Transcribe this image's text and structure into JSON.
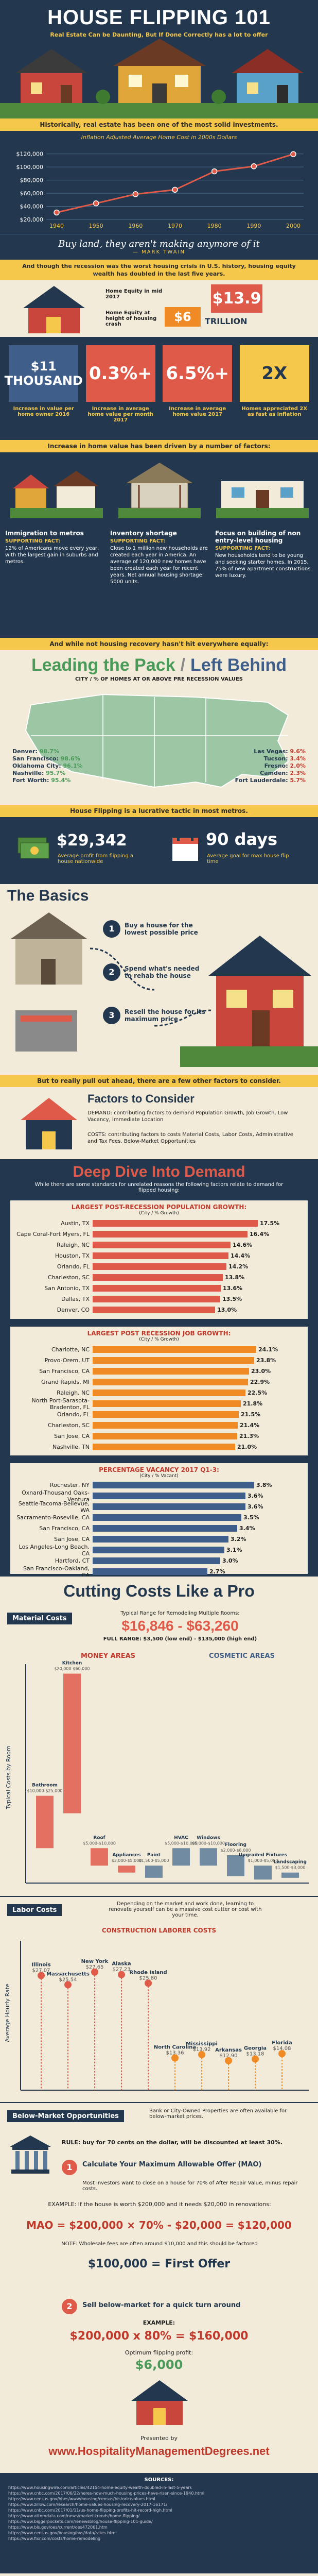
{
  "header": {
    "title": "HOUSE FLIPPING 101",
    "subtitle": "Real Estate Can be Daunting, But If Done Correctly has a lot to offer"
  },
  "intro_band": "Historically, real estate has been one of the most solid investments.",
  "home_cost_chart": {
    "title": "Inflation Adjusted Average Home Cost in 2000s Dollars",
    "x": [
      1940,
      1950,
      1960,
      1970,
      1980,
      1990,
      2000
    ],
    "values": [
      30600,
      44600,
      58600,
      65300,
      93400,
      101100,
      119600
    ],
    "y_ticks": [
      "$120,000",
      "$100,000",
      "$80,000",
      "$60,000",
      "$40,000",
      "$20,000"
    ],
    "x_labels": [
      "1940",
      "1950",
      "1960",
      "1970",
      "1980",
      "1990",
      "2000"
    ],
    "ylim": [
      20000,
      130000
    ]
  },
  "quote": {
    "text": "Buy land, they aren't making anymore of it",
    "author": "— MARK TWAIN"
  },
  "recession_band": "And though the recession was the worst housing crisis in U.S. history, housing equity wealth has doubled in the last five years.",
  "equity": {
    "left_label": "Home Equity in mid 2017",
    "left_value": "$13.9",
    "right_label": "Home Equity at height of housing crash",
    "right_value": "$6",
    "unit": "TRILLION"
  },
  "increase_stats": [
    {
      "value": "$11 THOUSAND",
      "label": "Increase in value per home owner 2016"
    },
    {
      "value": "0.3%+",
      "label": "Increase in average home value per month 2017"
    },
    {
      "value": "6.5%+",
      "label": "Increase in average home value 2017"
    },
    {
      "value": "2X",
      "label": "Homes appreciated 2X as fast as inflation"
    }
  ],
  "factors_band": "Increase in home value has been driven by a number of factors:",
  "factors": [
    {
      "title": "Immigration to metros",
      "sub": "SUPPORTING FACT:",
      "text": "12% of Americans move every year, with the largest gain in suburbs and metros."
    },
    {
      "title": "Inventory shortage",
      "sub": "SUPPORTING FACT:",
      "text": "Close to 1 million new households are created each year in America. An average of 120,000 new homes have been created each year for recent years. Net annual housing shortage: 5000 units."
    },
    {
      "title": "Focus on building of non entry-level housing",
      "sub": "SUPPORTING FACT:",
      "text": "New households tend to be young and seeking starter homes. In 2015, 75% of new apartment constructions were luxury."
    }
  ],
  "not_even_band": "And while not housing recovery hasn't hit everywhere equally:",
  "leading_pack": {
    "title_left": "Leading the Pack",
    "title_right": "Left Behind",
    "caption": "CITY / % OF HOMES AT OR ABOVE PRE RECESSION VALUES",
    "leading": [
      {
        "city": "Denver",
        "pct": "98.7%"
      },
      {
        "city": "San Francisco",
        "pct": "98.6%"
      },
      {
        "city": "Oklahoma City",
        "pct": "96.1%"
      },
      {
        "city": "Nashville",
        "pct": "95.7%"
      },
      {
        "city": "Fort Worth",
        "pct": "95.4%"
      }
    ],
    "behind": [
      {
        "city": "Las Vegas",
        "pct": "9.6%"
      },
      {
        "city": "Tucson",
        "pct": "3.4%"
      },
      {
        "city": "Fresno",
        "pct": "2.0%"
      },
      {
        "city": "Camden",
        "pct": "2.3%"
      },
      {
        "city": "Fort Lauderdale",
        "pct": "5.7%"
      }
    ]
  },
  "lucrative_band": "House Flipping is a lucrative tactic in most metros.",
  "flip_stats": [
    {
      "value": "$29,342",
      "label": "Average profit from flipping a house nationwide"
    },
    {
      "value": "90 days",
      "label": "Average goal for max house flip time"
    }
  ],
  "basics": {
    "title": "The Basics",
    "steps": [
      {
        "n": "1",
        "text": "Buy a house for the lowest possible price"
      },
      {
        "n": "2",
        "text": "Spend what's needed to rehab the house"
      },
      {
        "n": "3",
        "text": "Resell the house for its maximum price"
      }
    ]
  },
  "basics_band": "But to really pull out ahead, there are a few other factors to consider.",
  "factors_consider": {
    "title": "Factors to Consider",
    "demand": "DEMAND: contributing factors to demand Population Growth, Job Growth, Low Vacancy, Immediate Location",
    "costs": "COSTS: contributing factors to costs Material Costs, Labor Costs, Administrative and Tax Fees, Below-Market Opportunities"
  },
  "deep_dive": {
    "title": "Deep Dive Into Demand",
    "intro": "While there are some standards for unrelated reasons the following factors relate to demand for flipped housing:"
  },
  "pop_chart": {
    "title": "LARGEST POST-RECESSION POPULATION GROWTH:",
    "unit": "(City / % Growth)",
    "categories": [
      "Austin, TX",
      "Cape Coral-Fort Myers, FL",
      "Raleigh, NC",
      "Houston, TX",
      "Orlando, FL",
      "Charleston, SC",
      "San Antonio, TX",
      "Dallas, TX",
      "Denver, CO"
    ],
    "values": [
      17.5,
      16.4,
      14.6,
      14.4,
      14.2,
      13.8,
      13.6,
      13.5,
      13.0
    ],
    "labels": [
      "17.5%",
      "16.4%",
      "14.6%",
      "14.4%",
      "14.2%",
      "13.8%",
      "13.6%",
      "13.5%",
      "13.0%"
    ]
  },
  "job_chart": {
    "title": "LARGEST POST RECESSION JOB GROWTH:",
    "unit": "(City / % Growth)",
    "categories": [
      "Charlotte, NC",
      "Provo-Orem, UT",
      "San Francisco, CA",
      "Grand Rapids, MI",
      "Raleigh, NC",
      "North Port-Sarasota-Bradenton, FL",
      "Orlando, FL",
      "Charleston, SC",
      "San Jose, CA",
      "Nashville, TN"
    ],
    "values": [
      24.1,
      23.8,
      23.0,
      22.9,
      22.5,
      21.8,
      21.5,
      21.4,
      21.3,
      21.0
    ],
    "labels": [
      "24.1%",
      "23.8%",
      "23.0%",
      "22.9%",
      "22.5%",
      "21.8%",
      "21.5%",
      "21.4%",
      "21.3%",
      "21.0%"
    ]
  },
  "vacancy_chart": {
    "title": "PERCENTAGE VACANCY 2017 Q1-3:",
    "unit": "(City / % Vacant)",
    "categories": [
      "Rochester, NY",
      "Oxnard-Thousand Oaks-Ventura",
      "Seattle-Tacoma-Bellevue, WA",
      "Sacramento-Roseville, CA",
      "San Francisco, CA",
      "San Jose, CA",
      "Los Angeles-Long Beach, CA",
      "Hartford, CT",
      "San Francisco-Oakland, CA",
      "San Diego, CA"
    ],
    "values": [
      3.8,
      3.6,
      3.6,
      3.5,
      3.4,
      3.2,
      3.1,
      3.0,
      2.7,
      2.5
    ],
    "labels": [
      "3.8%",
      "3.6%",
      "3.6%",
      "3.5%",
      "3.4%",
      "3.2%",
      "3.1%",
      "3.0%",
      "2.7%",
      "2.5%"
    ]
  },
  "cutting": {
    "title": "Cutting Costs Like a Pro",
    "material_label": "Material Costs",
    "typical": "Typical Range for Remodeling Multiple Rooms:",
    "range": "$16,846 - $63,260",
    "full_range": "FULL RANGE: $3,500 (low end) - $135,000 (high end)",
    "money_areas": "MONEY AREAS",
    "cosmetic_areas": "COSMETIC AREAS",
    "y_axis": "Typical Costs by Room",
    "room_ranges": [
      {
        "name": "Bathroom",
        "range": "$10,000-$25,000"
      },
      {
        "name": "Kitchen",
        "range": "$20,000-$60,000"
      },
      {
        "name": "Roof",
        "range": "$5,000-$10,000"
      },
      {
        "name": "Appliances",
        "range": "$3,000-$5,000"
      },
      {
        "name": "Paint",
        "range": "$1,500-$5,000"
      },
      {
        "name": "HVAC",
        "range": "$5,000-$10,000"
      },
      {
        "name": "Windows",
        "range": "$5,000-$10,000"
      },
      {
        "name": "Flooring",
        "range": "$2,000-$8,000"
      },
      {
        "name": "Upgraded Fixtures",
        "range": "$1,000-$5,000"
      },
      {
        "name": "Landscaping",
        "range": "$1,500-$3,000"
      }
    ]
  },
  "labor": {
    "label": "Labor Costs",
    "intro": "Depending on the market and work done, learning to renovate yourself can be a massive cost cutter or cost with your time.",
    "chart_title": "CONSTRUCTION LABORER COSTS",
    "y_axis": "Average Hourly Rate",
    "points": [
      {
        "state": "Illinois",
        "value": "$27.07",
        "v": 27.07
      },
      {
        "state": "Massachusetts",
        "value": "$25.54",
        "v": 25.54
      },
      {
        "state": "New York",
        "value": "$27.65",
        "v": 27.65
      },
      {
        "state": "Alaska",
        "value": "$27.23",
        "v": 27.23
      },
      {
        "state": "Rhode Island",
        "value": "$25.80",
        "v": 25.8
      },
      {
        "state": "North Carolina",
        "value": "$13.36",
        "v": 13.36
      },
      {
        "state": "Mississippi",
        "value": "$13.92",
        "v": 13.92
      },
      {
        "state": "Arkansas",
        "value": "$12.90",
        "v": 12.9
      },
      {
        "state": "Georgia",
        "value": "$13.18",
        "v": 13.18
      },
      {
        "state": "Florida",
        "value": "$14.08",
        "v": 14.08
      }
    ]
  },
  "below_market": {
    "label": "Below-Market Opportunities",
    "intro": "Bank or City-Owned Properties are often available for below-market prices.",
    "rule": "RULE: buy for 70 cents on the dollar, will be discounted at least 30%.",
    "step1_title": "Calculate Your Maximum Allowable Offer (MAO)",
    "step1_text": "Most investors want to close on a house for 70% of After Repair Value, minus repair costs.",
    "example1": "EXAMPLE: If the house is worth $200,000 and it needs $20,000 in renovations:",
    "formula": "MAO = $200,000 × 70% - $20,000 = $120,000",
    "note": "NOTE: Wholesale fees are often around $10,000 and this should be factored",
    "first_offer": "$100,000 = First Offer",
    "step2_title": "Sell below-market for a quick turn around",
    "example2": "EXAMPLE:",
    "formula2": "$200,000 x 80% = $160,000",
    "optimum": "Optimum flipping profit:",
    "profit": "$6,000"
  },
  "footer": {
    "presented_by": "Presented by",
    "site": "www.HospitalityManagementDegrees.net",
    "sources_label": "SOURCES:",
    "sources": [
      "https://www.housingwire.com/articles/42154-home-equity-wealth-doubled-in-last-5-years",
      "https://www.cnbc.com/2017/06/22/heres-how-much-housing-prices-have-risen-since-1940.html",
      "https://www.census.gov/hhes/www/housing/census/historic/values.html",
      "https://www.zillow.com/research/home-values-housing-recovery-2017-16171/",
      "https://www.cnbc.com/2017/01/11/us-home-flipping-profits-hit-record-high.html",
      "https://www.attomdata.com/news/market-trends/home-flipping/",
      "https://www.biggerpockets.com/renewsblog/house-flipping-101-guide/",
      "https://www.bls.gov/oes/current/oes472061.htm",
      "https://www.census.gov/housing/hvs/data/rates.html",
      "https://www.fixr.com/costs/home-remodeling"
    ]
  },
  "colors": {
    "navy": "#23384e",
    "yellow": "#f5c84b",
    "red": "#e05a4a",
    "orange": "#f08a24",
    "cream": "#f2ebd9"
  }
}
